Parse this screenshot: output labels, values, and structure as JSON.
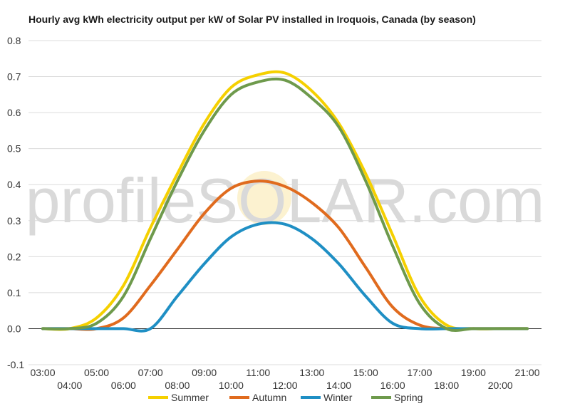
{
  "chart_data": {
    "type": "line",
    "title": "Hourly avg kWh electricity output per kW of Solar PV installed in Iroquois, Canada (by season)",
    "watermark": "profileSOLAR.com",
    "xlabel": "",
    "ylabel": "",
    "x_ticks": [
      "03:00",
      "04:00",
      "05:00",
      "06:00",
      "07:00",
      "08:00",
      "09:00",
      "10:00",
      "11:00",
      "12:00",
      "13:00",
      "14:00",
      "15:00",
      "16:00",
      "17:00",
      "18:00",
      "19:00",
      "20:00",
      "21:00"
    ],
    "ylim": [
      -0.1,
      0.8
    ],
    "y_ticks": [
      -0.1,
      0.0,
      0.1,
      0.2,
      0.3,
      0.4,
      0.5,
      0.6,
      0.7,
      0.8
    ],
    "y_tick_labels": [
      "-0.1",
      "0.0",
      "0.1",
      "0.2",
      "0.3",
      "0.4",
      "0.5",
      "0.6",
      "0.7",
      "0.8"
    ],
    "grid": true,
    "legend_position": "bottom",
    "series": [
      {
        "name": "Summer",
        "color": "#f5d000",
        "values": [
          0.0,
          0.0,
          0.03,
          0.12,
          0.28,
          0.43,
          0.57,
          0.67,
          0.705,
          0.71,
          0.66,
          0.57,
          0.43,
          0.26,
          0.09,
          0.01,
          0.0,
          0.0,
          0.0
        ]
      },
      {
        "name": "Autumn",
        "color": "#e06b1e",
        "values": [
          0.0,
          0.0,
          0.0,
          0.03,
          0.12,
          0.22,
          0.32,
          0.39,
          0.41,
          0.395,
          0.35,
          0.28,
          0.17,
          0.06,
          0.01,
          0.0,
          0.0,
          0.0,
          0.0
        ]
      },
      {
        "name": "Winter",
        "color": "#1f8fc4",
        "values": [
          0.0,
          0.0,
          0.0,
          0.0,
          0.0,
          0.09,
          0.18,
          0.255,
          0.29,
          0.29,
          0.25,
          0.18,
          0.09,
          0.015,
          0.0,
          0.0,
          0.0,
          0.0,
          0.0
        ]
      },
      {
        "name": "Spring",
        "color": "#6e9a4c",
        "values": [
          0.0,
          0.0,
          0.015,
          0.09,
          0.25,
          0.41,
          0.55,
          0.65,
          0.685,
          0.69,
          0.64,
          0.56,
          0.41,
          0.23,
          0.07,
          0.0,
          0.0,
          0.0,
          0.0
        ]
      }
    ]
  }
}
